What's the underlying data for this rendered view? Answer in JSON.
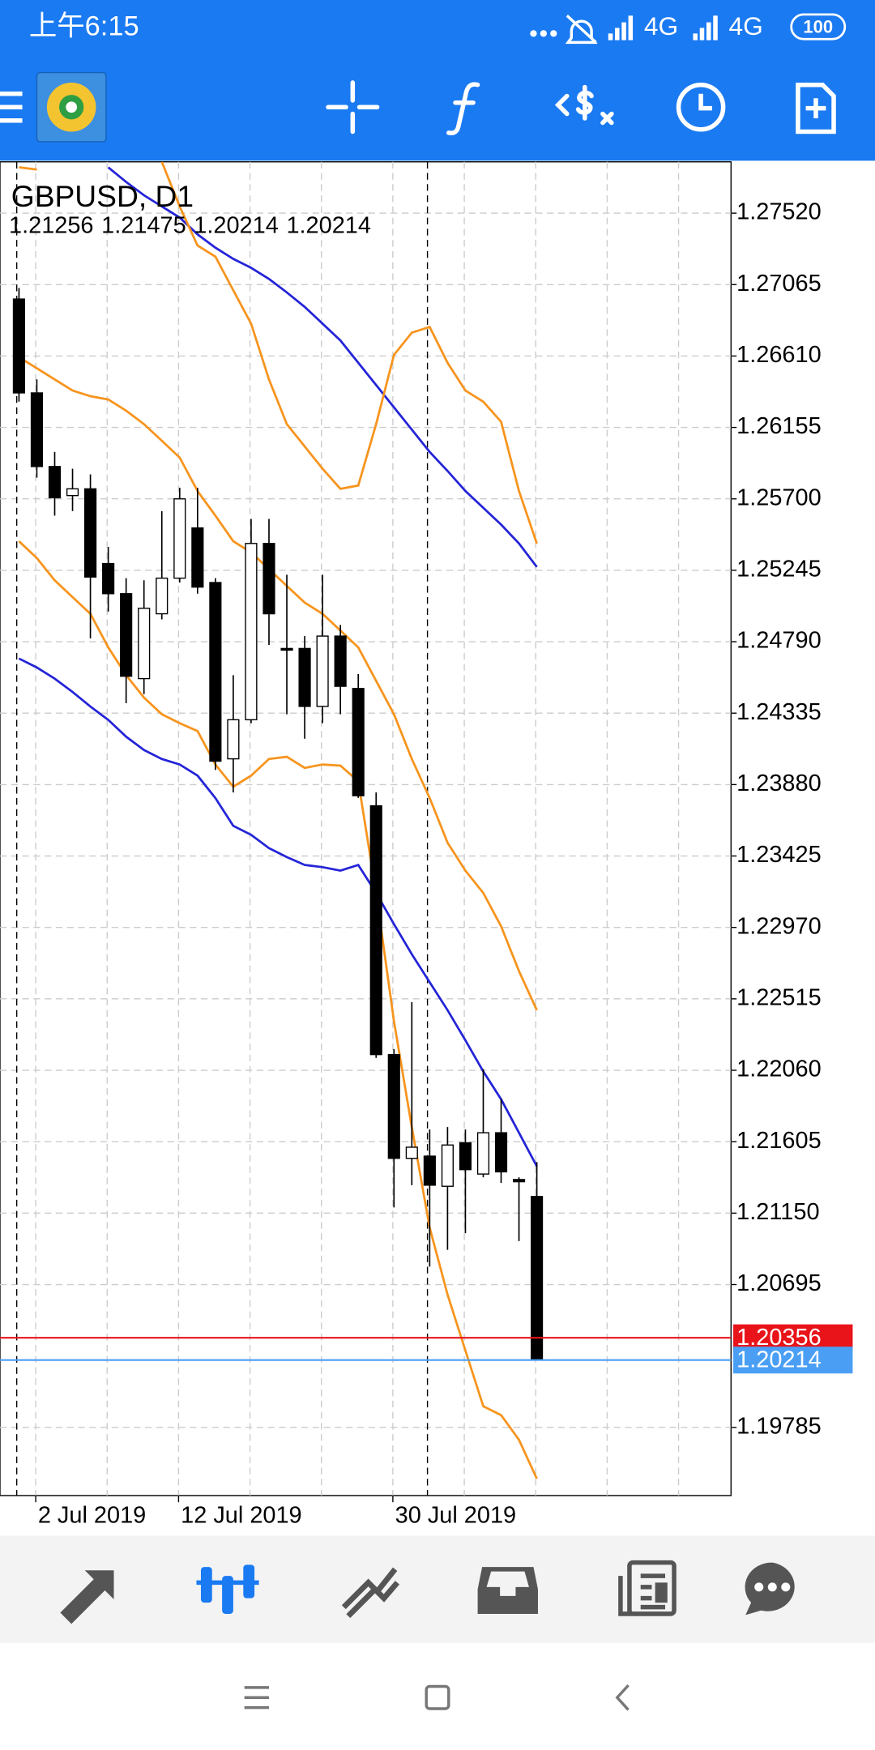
{
  "status_bar": {
    "time": "上午6:15",
    "network_1": "4G",
    "network_2": "4G",
    "battery": "100"
  },
  "chart_data": {
    "type": "candlestick",
    "title": "GBPUSD, D1",
    "categories": [
      null,
      "2 Jul 2019",
      null,
      null,
      null,
      null,
      null,
      null,
      null,
      "12 Jul 2019",
      null,
      null,
      null,
      null,
      null,
      null,
      null,
      null,
      null,
      null,
      null,
      "30 Jul 2019",
      null,
      null,
      null,
      null,
      null,
      null,
      null,
      null
    ],
    "open": [
      1.26973,
      1.26375,
      1.25906,
      1.25721,
      1.25764,
      1.25288,
      1.25096,
      1.24555,
      1.24968,
      1.25195,
      1.25515,
      1.25167,
      1.24044,
      1.24293,
      1.25416,
      1.24747,
      1.24747,
      1.24378,
      1.24826,
      1.24492,
      1.23745,
      1.2216,
      1.21499,
      1.21513,
      1.21321,
      1.21598,
      1.21399,
      1.21662,
      1.21364,
      1.21256
    ],
    "high": [
      1.27044,
      1.26461,
      1.25999,
      1.25892,
      1.25856,
      1.25394,
      1.25195,
      1.25181,
      1.25622,
      1.25771,
      1.25771,
      1.25195,
      1.24577,
      1.25572,
      1.25572,
      1.25217,
      1.24826,
      1.25217,
      1.24897,
      1.24584,
      1.2383,
      1.22195,
      1.22494,
      1.21683,
      1.21698,
      1.21683,
      1.22067,
      1.21875,
      1.21378,
      1.21475
    ],
    "low": [
      1.26319,
      1.25835,
      1.25593,
      1.25622,
      1.24811,
      1.24982,
      1.24399,
      1.24456,
      1.24932,
      1.25167,
      1.25096,
      1.23973,
      1.2383,
      1.24271,
      1.24769,
      1.24328,
      1.24172,
      1.24271,
      1.24328,
      1.23795,
      1.22139,
      1.21186,
      1.21328,
      1.20809,
      1.20916,
      1.21022,
      1.21378,
      1.21342,
      1.20972,
      1.20214
    ],
    "close": [
      1.26375,
      1.25906,
      1.25707,
      1.25764,
      1.25202,
      1.25096,
      1.2457,
      1.25003,
      1.25195,
      1.257,
      1.25138,
      1.24029,
      1.24293,
      1.25416,
      1.24968,
      1.2474,
      1.24378,
      1.24826,
      1.24506,
      1.23809,
      1.2216,
      1.21499,
      1.2157,
      1.21328,
      1.21584,
      1.21427,
      1.21662,
      1.21413,
      1.2135,
      1.20214
    ],
    "up_color": "#ffffff",
    "down_color": "#000000",
    "overlays": [
      {
        "color": "#2424d8",
        "values": [
          null,
          null,
          null,
          null,
          null,
          1.27812,
          1.27719,
          1.27634,
          1.27563,
          1.27492,
          1.27385,
          1.273,
          1.27229,
          1.27172,
          1.27101,
          1.27015,
          1.26923,
          1.26816,
          1.26709,
          1.26567,
          1.26425,
          1.26283,
          1.26141,
          1.25999,
          1.25878,
          1.2575,
          1.25643,
          1.25536,
          1.25416,
          1.25266
        ]
      },
      {
        "color": "#2424d8",
        "values": [
          1.24683,
          1.24626,
          1.24555,
          1.2447,
          1.24377,
          1.24292,
          1.24185,
          1.241,
          1.24043,
          1.24008,
          1.23937,
          1.23794,
          1.23617,
          1.2356,
          1.23475,
          1.23418,
          1.23368,
          1.23354,
          1.23332,
          1.23368,
          1.2319,
          1.22991,
          1.22799,
          1.22621,
          1.22443,
          1.22251,
          1.22053,
          1.21875,
          1.21662,
          1.21448
        ]
      },
      {
        "color": "#f7941d",
        "values": [
          1.27812,
          1.27798,
          null,
          null,
          null,
          null,
          null,
          null,
          1.27847,
          1.27563,
          1.27314,
          1.27243,
          1.27029,
          1.26816,
          1.26461,
          1.26176,
          1.26034,
          1.25892,
          1.25764,
          1.25785,
          1.26176,
          1.26617,
          1.26759,
          1.26795,
          1.26567,
          1.2639,
          1.26319,
          1.26191,
          1.2575,
          1.25416
        ]
      },
      {
        "color": "#f7941d",
        "values": [
          1.26603,
          1.26532,
          1.26461,
          1.2639,
          1.26354,
          1.26333,
          1.26262,
          1.26176,
          1.2607,
          1.25963,
          1.2575,
          1.25593,
          1.2543,
          1.25359,
          1.25252,
          1.25145,
          1.25039,
          1.24968,
          1.24861,
          1.24754,
          1.24541,
          1.24328,
          1.24043,
          1.23794,
          1.2351,
          1.23332,
          1.2319,
          1.22977,
          1.22692,
          1.22443
        ]
      },
      {
        "color": "#f7941d",
        "values": [
          1.2543,
          1.25323,
          1.25181,
          1.25074,
          1.24968,
          1.24754,
          1.24577,
          1.24434,
          1.24328,
          1.24271,
          1.24221,
          1.24008,
          1.23866,
          1.23937,
          1.24043,
          1.24057,
          1.23986,
          1.24008,
          1.24001,
          1.23901,
          1.2319,
          1.22372,
          1.21697,
          1.21057,
          1.20631,
          1.20275,
          1.1992,
          1.19863,
          1.19706,
          1.19458
        ]
      }
    ],
    "price_lines": [
      {
        "value": 1.20356,
        "color": "#e8141a"
      },
      {
        "value": 1.20214,
        "color": "#4a9ff5"
      }
    ],
    "ylim": [
      1.19351,
      1.27847
    ],
    "yticks": [
      {
        "value": 1.2752,
        "label": "1.27520"
      },
      1.27065,
      {
        "value": 1.2661,
        "label": "1.26610"
      },
      1.26155,
      {
        "value": 1.257,
        "label": "1.25700"
      },
      1.25245,
      {
        "value": 1.2479,
        "label": "1.24790"
      },
      1.24335,
      {
        "value": 1.2388,
        "label": "1.23880"
      },
      1.23425,
      {
        "value": 1.2297,
        "label": "1.22970"
      },
      1.22515,
      {
        "value": 1.2206,
        "label": "1.22060"
      },
      1.21605,
      {
        "value": 1.2115,
        "label": "1.21150"
      },
      1.20695,
      1.19785
    ],
    "grid": true
  }
}
